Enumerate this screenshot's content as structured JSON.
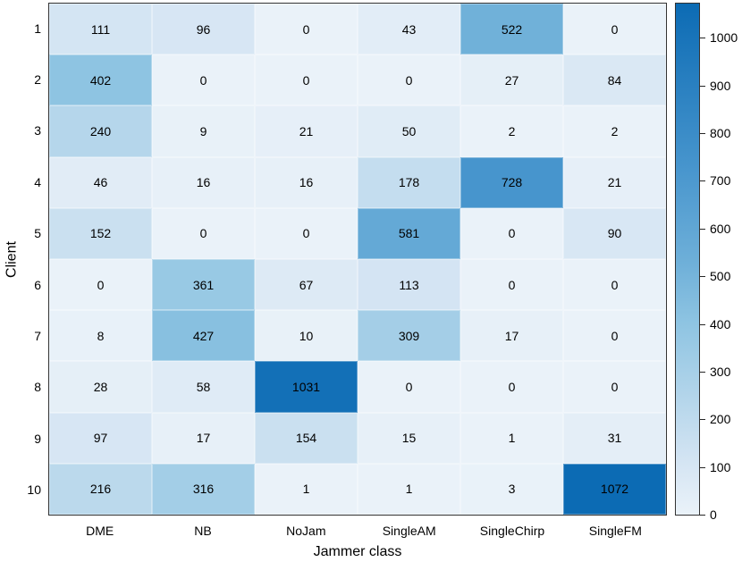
{
  "chart_data": {
    "type": "heatmap",
    "title": "",
    "xlabel": "Jammer class",
    "ylabel": "Client",
    "columns": [
      "DME",
      "NB",
      "NoJam",
      "SingleAM",
      "SingleChirp",
      "SingleFM"
    ],
    "rows": [
      "1",
      "2",
      "3",
      "4",
      "5",
      "6",
      "7",
      "8",
      "9",
      "10"
    ],
    "values": [
      [
        111,
        96,
        0,
        43,
        522,
        0
      ],
      [
        402,
        0,
        0,
        0,
        27,
        84
      ],
      [
        240,
        9,
        21,
        50,
        2,
        2
      ],
      [
        46,
        16,
        16,
        178,
        728,
        21
      ],
      [
        152,
        0,
        0,
        581,
        0,
        90
      ],
      [
        0,
        361,
        67,
        113,
        0,
        0
      ],
      [
        8,
        427,
        10,
        309,
        17,
        0
      ],
      [
        28,
        58,
        1031,
        0,
        0,
        0
      ],
      [
        97,
        17,
        154,
        15,
        1,
        31
      ],
      [
        216,
        316,
        1,
        1,
        3,
        1072
      ]
    ],
    "vmin": 0,
    "vmax": 1072,
    "colorbar_ticks": [
      0,
      100,
      200,
      300,
      400,
      500,
      600,
      700,
      800,
      900,
      1000
    ],
    "colorbar_position": "right",
    "grid": true,
    "colormap": {
      "name": "blues-sequential",
      "stops": [
        {
          "t": 0.0,
          "color": "#eaf2f9"
        },
        {
          "t": 0.1,
          "color": "#d5e5f3"
        },
        {
          "t": 0.224,
          "color": "#b5d6eb"
        },
        {
          "t": 0.375,
          "color": "#8ec4e2"
        },
        {
          "t": 0.49,
          "color": "#6fb0d9"
        },
        {
          "t": 0.68,
          "color": "#4795cd"
        },
        {
          "t": 1.0,
          "color": "#0c6bb4"
        }
      ]
    },
    "text_color": "#000000",
    "axis_border_color": "#333333"
  }
}
